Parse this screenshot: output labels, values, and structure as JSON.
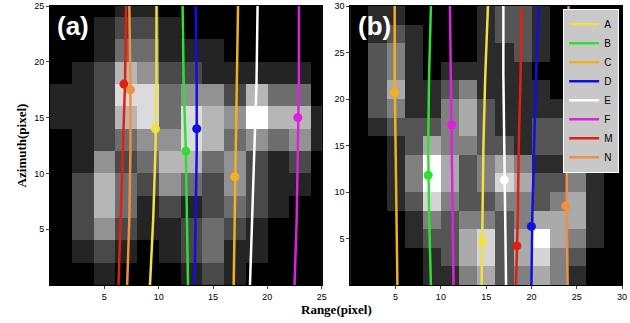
{
  "chart_data": [
    {
      "type": "heatmap",
      "panel_label": "(a)",
      "xlabel": "Range(pixel)",
      "ylabel": "Azimuth(pixel)",
      "xlim": [
        0,
        25
      ],
      "ylim": [
        0,
        25
      ],
      "xticks": [
        5,
        10,
        15,
        20,
        25
      ],
      "yticks": [
        5,
        10,
        15,
        20,
        25
      ],
      "heatmap": {
        "x": [
          1,
          3,
          5,
          7,
          9,
          11,
          13,
          15,
          17,
          19,
          21,
          23,
          25
        ],
        "y": [
          1,
          3,
          5,
          7,
          9,
          11,
          13,
          15,
          17,
          19,
          21,
          23,
          25
        ],
        "z": [
          [
            1,
            1,
            2,
            1,
            1,
            1,
            2,
            3,
            2,
            1,
            1,
            1,
            1
          ],
          [
            1,
            2,
            3,
            2,
            1,
            2,
            3,
            4,
            2,
            2,
            1,
            1,
            1
          ],
          [
            1,
            3,
            5,
            3,
            2,
            2,
            3,
            4,
            3,
            2,
            1,
            1,
            1
          ],
          [
            1,
            3,
            6,
            4,
            2,
            3,
            2,
            3,
            4,
            3,
            2,
            1,
            1
          ],
          [
            1,
            3,
            6,
            4,
            3,
            5,
            4,
            3,
            5,
            3,
            2,
            2,
            1
          ],
          [
            1,
            2,
            5,
            3,
            4,
            6,
            6,
            4,
            5,
            3,
            2,
            3,
            1
          ],
          [
            1,
            2,
            3,
            4,
            5,
            5,
            7,
            6,
            4,
            5,
            4,
            5,
            2
          ],
          [
            2,
            2,
            3,
            6,
            7,
            4,
            7,
            6,
            5,
            8,
            6,
            6,
            2
          ],
          [
            2,
            2,
            3,
            7,
            7,
            4,
            5,
            5,
            3,
            6,
            4,
            4,
            1
          ],
          [
            1,
            2,
            3,
            6,
            5,
            3,
            3,
            2,
            2,
            2,
            2,
            2,
            1
          ],
          [
            1,
            1,
            2,
            4,
            4,
            2,
            2,
            2,
            1,
            1,
            1,
            1,
            1
          ],
          [
            1,
            1,
            2,
            3,
            3,
            2,
            1,
            1,
            1,
            1,
            1,
            1,
            1
          ],
          [
            1,
            1,
            1,
            2,
            2,
            1,
            1,
            1,
            1,
            1,
            1,
            1,
            1
          ]
        ]
      },
      "series": [
        {
          "name": "M",
          "color": "#e02010",
          "x": [
            6.3,
            6.5,
            6.7,
            6.9,
            7.0
          ],
          "y": [
            0,
            6,
            12,
            18,
            25
          ],
          "point": [
            6.8,
            18
          ]
        },
        {
          "name": "N",
          "color": "#f09040",
          "x": [
            7.1,
            7.3,
            7.4,
            7.4,
            7.3
          ],
          "y": [
            0,
            6,
            12,
            18,
            25
          ],
          "point": [
            7.4,
            17.5
          ]
        },
        {
          "name": "A",
          "color": "#f0e040",
          "x": [
            9.2,
            9.5,
            9.7,
            9.8,
            9.8
          ],
          "y": [
            0,
            6,
            12,
            18,
            25
          ],
          "point": [
            9.7,
            14
          ]
        },
        {
          "name": "B",
          "color": "#30e030",
          "x": [
            12.7,
            12.6,
            12.5,
            12.3,
            12.2
          ],
          "y": [
            0,
            6,
            12,
            18,
            25
          ],
          "point": [
            12.5,
            12
          ]
        },
        {
          "name": "D",
          "color": "#1010e0",
          "x": [
            13.3,
            13.4,
            13.5,
            13.5,
            13.4
          ],
          "y": [
            0,
            6,
            12,
            18,
            25
          ],
          "point": [
            13.5,
            14
          ]
        },
        {
          "name": "C",
          "color": "#f0b020",
          "x": [
            16.9,
            17.0,
            17.1,
            17.2,
            17.3
          ],
          "y": [
            0,
            6,
            12,
            18,
            25
          ],
          "point": [
            17.0,
            9.7
          ]
        },
        {
          "name": "E",
          "color": "#ffffff",
          "x": [
            18.4,
            18.6,
            18.8,
            19.0,
            19.1
          ],
          "y": [
            0,
            6,
            12,
            18,
            25
          ],
          "point": [
            18.9,
            14.7
          ]
        },
        {
          "name": "F",
          "color": "#e020e0",
          "x": [
            22.5,
            22.7,
            22.8,
            22.9,
            22.9
          ],
          "y": [
            0,
            6,
            12,
            18,
            25
          ],
          "point": [
            22.8,
            15
          ]
        }
      ]
    },
    {
      "type": "heatmap",
      "panel_label": "(b)",
      "legend": "top right",
      "xlim": [
        0,
        30
      ],
      "ylim": [
        0,
        30
      ],
      "xticks": [
        5,
        10,
        15,
        20,
        25,
        30
      ],
      "yticks": [
        5,
        10,
        15,
        20,
        25,
        30
      ],
      "heatmap": {
        "x": [
          1,
          3,
          5,
          7,
          9,
          11,
          13,
          15,
          17,
          19,
          21,
          23,
          25,
          27,
          29
        ],
        "y": [
          1,
          3,
          5,
          7,
          9,
          11,
          13,
          15,
          17,
          19,
          21,
          23,
          25,
          27,
          29
        ],
        "z": [
          [
            1,
            1,
            1,
            1,
            2,
            2,
            4,
            5,
            3,
            4,
            5,
            4,
            2,
            1,
            1
          ],
          [
            1,
            1,
            1,
            1,
            2,
            3,
            5,
            6,
            3,
            5,
            6,
            4,
            3,
            1,
            1
          ],
          [
            1,
            1,
            1,
            2,
            3,
            3,
            5,
            6,
            3,
            5,
            7,
            5,
            4,
            2,
            1
          ],
          [
            1,
            1,
            1,
            2,
            4,
            3,
            4,
            4,
            3,
            4,
            5,
            5,
            5,
            2,
            1
          ],
          [
            1,
            1,
            2,
            3,
            6,
            4,
            3,
            3,
            4,
            4,
            3,
            4,
            5,
            2,
            1
          ],
          [
            1,
            1,
            2,
            4,
            7,
            5,
            3,
            4,
            6,
            5,
            3,
            3,
            4,
            2,
            1
          ],
          [
            1,
            1,
            2,
            4,
            7,
            5,
            3,
            4,
            5,
            4,
            2,
            2,
            2,
            1,
            1
          ],
          [
            1,
            1,
            2,
            3,
            5,
            4,
            4,
            3,
            3,
            2,
            3,
            3,
            2,
            1,
            1
          ],
          [
            1,
            2,
            3,
            3,
            3,
            4,
            5,
            3,
            2,
            2,
            3,
            3,
            2,
            1,
            1
          ],
          [
            1,
            3,
            4,
            2,
            2,
            4,
            5,
            3,
            2,
            2,
            2,
            2,
            1,
            1,
            1
          ],
          [
            1,
            3,
            5,
            2,
            2,
            3,
            4,
            2,
            2,
            2,
            2,
            1,
            1,
            1,
            1
          ],
          [
            1,
            3,
            4,
            2,
            1,
            2,
            2,
            2,
            2,
            2,
            1,
            1,
            1,
            1,
            1
          ],
          [
            1,
            3,
            4,
            2,
            1,
            1,
            1,
            2,
            2,
            3,
            2,
            1,
            1,
            1,
            1
          ],
          [
            1,
            2,
            3,
            2,
            1,
            1,
            1,
            2,
            3,
            3,
            2,
            1,
            1,
            1,
            1
          ],
          [
            1,
            2,
            2,
            1,
            1,
            1,
            1,
            2,
            3,
            3,
            2,
            1,
            1,
            1,
            1
          ]
        ]
      },
      "series": [
        {
          "name": "A",
          "color": "#f0e040",
          "x": [
            14.5,
            14.6,
            14.7,
            14.9,
            15.2
          ],
          "y": [
            0,
            7.5,
            15,
            22.5,
            30
          ],
          "point": [
            14.6,
            4.7
          ]
        },
        {
          "name": "B",
          "color": "#30e030",
          "x": [
            8.9,
            8.7,
            8.6,
            8.7,
            8.9
          ],
          "y": [
            0,
            7.5,
            15,
            22.5,
            30
          ],
          "point": [
            8.6,
            11.8
          ]
        },
        {
          "name": "C",
          "color": "#f0b020",
          "x": [
            5.2,
            5.1,
            5.0,
            4.9,
            4.9
          ],
          "y": [
            0,
            7.5,
            15,
            22.5,
            30
          ],
          "point": [
            4.9,
            20.7
          ]
        },
        {
          "name": "D",
          "color": "#1010e0",
          "x": [
            20.0,
            20.1,
            20.3,
            20.5,
            20.8
          ],
          "y": [
            0,
            7.5,
            15,
            22.5,
            30
          ],
          "point": [
            20.0,
            6.3
          ]
        },
        {
          "name": "E",
          "color": "#ffffff",
          "x": [
            17.2,
            17.1,
            17.0,
            16.9,
            16.9
          ],
          "y": [
            0,
            7.5,
            15,
            22.5,
            30
          ],
          "point": [
            17.0,
            11.3
          ]
        },
        {
          "name": "F",
          "color": "#e020e0",
          "x": [
            11.4,
            11.3,
            11.2,
            11.1,
            11.0
          ],
          "y": [
            0,
            7.5,
            15,
            22.5,
            30
          ],
          "point": [
            11.2,
            17.2
          ]
        },
        {
          "name": "M",
          "color": "#e02010",
          "x": [
            18.3,
            18.5,
            18.6,
            18.8,
            18.9
          ],
          "y": [
            0,
            7.5,
            15,
            22.5,
            30
          ],
          "point": [
            18.4,
            4.2
          ]
        },
        {
          "name": "N",
          "color": "#f09040",
          "x": [
            24.0,
            23.9,
            23.9,
            24.0,
            24.1
          ],
          "y": [
            0,
            7.5,
            15,
            22.5,
            30
          ],
          "point": [
            23.8,
            8.5
          ]
        }
      ]
    }
  ]
}
